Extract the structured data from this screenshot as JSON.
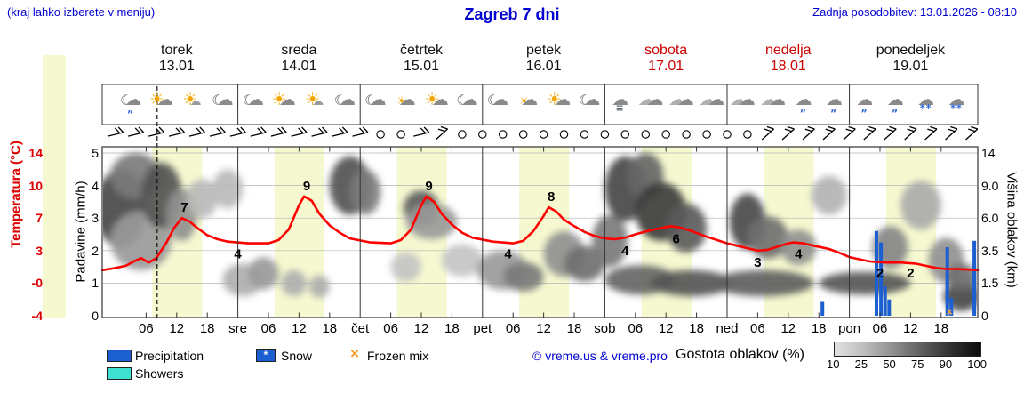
{
  "header": {
    "hint": "(kraj lahko izberete v meniju)",
    "title": "Zagreb 7 dni",
    "updated": "Zadnja posodobitev: 13.01.2026 - 08:10"
  },
  "axes": {
    "temp_label": "Temperatura (°C)",
    "temp_ticks": [
      "14",
      "10",
      "7",
      "3",
      "-0",
      "-4"
    ],
    "precip_label": "Padavine (mm/h)",
    "precip_ticks": [
      "5",
      "4",
      "3",
      "2",
      "1",
      "0"
    ],
    "cloud_label": "Višina oblakov (km)",
    "cloud_ticks": [
      "14",
      "9.0",
      "6.0",
      "3.5",
      "1.5",
      "0"
    ]
  },
  "days": [
    {
      "name": "torek",
      "date": "13.01",
      "weekend": false
    },
    {
      "name": "sreda",
      "date": "14.01",
      "weekend": false
    },
    {
      "name": "četrtek",
      "date": "15.01",
      "weekend": false
    },
    {
      "name": "petek",
      "date": "16.01",
      "weekend": false
    },
    {
      "name": "sobota",
      "date": "17.01",
      "weekend": true
    },
    {
      "name": "nedelja",
      "date": "18.01",
      "weekend": true
    },
    {
      "name": "ponedeljek",
      "date": "19.01",
      "weekend": false
    }
  ],
  "bottom_axis": {
    "time_labels": [
      "06",
      "12",
      "18"
    ],
    "day_abbrevs": [
      "sre",
      "čet",
      "pet",
      "sob",
      "ned",
      "pon"
    ]
  },
  "legend": {
    "precipitation": "Precipitation",
    "snow": "Snow",
    "snow_glyph": "*",
    "frozen": "Frozen mix",
    "frozen_glyph": "×",
    "showers": "Showers",
    "copyright": "© vreme.us & vreme.pro",
    "cloud_density": "Gostota oblakov (%)",
    "density_ticks": [
      "10",
      "25",
      "50",
      "75",
      "90",
      "100"
    ]
  },
  "colors": {
    "accent_blue": "#0000d0",
    "temp_curve_red": "#ff0000",
    "tick_red": "#dd0000",
    "weekend_red": "#cc0000",
    "precip_blue": "#1b5fd0",
    "showers_cyan": "#3fe0cf",
    "frozen_orange": "#f0a030",
    "day_band_yellow": "#f6f9d0"
  },
  "weather_icons": [
    {
      "t": 3,
      "name": "night-drizzle",
      "parts": [
        [
          "☾",
          "moon"
        ],
        [
          "☁",
          "cloud"
        ]
      ],
      "mark": "„",
      "markcls": "rain"
    },
    {
      "t": 9,
      "name": "partly-sunny",
      "parts": [
        [
          "☀",
          "sun"
        ],
        [
          "☁",
          "cloud"
        ]
      ]
    },
    {
      "t": 15,
      "name": "sunny",
      "parts": [
        [
          "☀",
          "sun"
        ],
        [
          "☁",
          "cloud-small"
        ]
      ]
    },
    {
      "t": 21,
      "name": "night-cloudy",
      "parts": [
        [
          "☾",
          "moon"
        ],
        [
          "☁",
          "cloud"
        ]
      ]
    },
    {
      "t": 27,
      "name": "night-cloudy",
      "parts": [
        [
          "☾",
          "moon"
        ],
        [
          "☁",
          "cloud"
        ]
      ]
    },
    {
      "t": 33,
      "name": "partly-sunny",
      "parts": [
        [
          "☀",
          "sun"
        ],
        [
          "☁",
          "cloud"
        ]
      ]
    },
    {
      "t": 39,
      "name": "mostly-sunny",
      "parts": [
        [
          "☀",
          "sun"
        ],
        [
          "☁",
          "cloud-small"
        ]
      ]
    },
    {
      "t": 45,
      "name": "night-cloudy",
      "parts": [
        [
          "☾",
          "moon"
        ],
        [
          "☁",
          "cloud"
        ]
      ]
    },
    {
      "t": 51,
      "name": "night-cloudy",
      "parts": [
        [
          "☾",
          "moon"
        ],
        [
          "☁",
          "cloud"
        ]
      ]
    },
    {
      "t": 57,
      "name": "cloudy-sun",
      "parts": [
        [
          "☀",
          "sun-small"
        ],
        [
          "☁",
          "cloud"
        ]
      ]
    },
    {
      "t": 63,
      "name": "partly-sunny",
      "parts": [
        [
          "☀",
          "sun"
        ],
        [
          "☁",
          "cloud"
        ]
      ]
    },
    {
      "t": 69,
      "name": "night-cloudy",
      "parts": [
        [
          "☾",
          "moon"
        ],
        [
          "☁",
          "cloud"
        ]
      ]
    },
    {
      "t": 75,
      "name": "night-cloudy",
      "parts": [
        [
          "☾",
          "moon"
        ],
        [
          "☁",
          "cloud"
        ]
      ]
    },
    {
      "t": 81,
      "name": "cloudy-sun",
      "parts": [
        [
          "☀",
          "sun-small"
        ],
        [
          "☁",
          "cloud"
        ]
      ]
    },
    {
      "t": 87,
      "name": "partly-sunny",
      "parts": [
        [
          "☀",
          "sun"
        ],
        [
          "☁",
          "cloud"
        ]
      ]
    },
    {
      "t": 93,
      "name": "night-cloudy",
      "parts": [
        [
          "☾",
          "moon"
        ],
        [
          "☁",
          "cloud"
        ]
      ]
    },
    {
      "t": 99,
      "name": "fog",
      "parts": [
        [
          "☁",
          "cloud"
        ]
      ],
      "mark": "≡",
      "markcls": "fog"
    },
    {
      "t": 105,
      "name": "cloudy",
      "parts": [
        [
          "☁",
          "cloud2"
        ],
        [
          "☁",
          "cloud"
        ]
      ]
    },
    {
      "t": 111,
      "name": "cloudy",
      "parts": [
        [
          "☁",
          "cloud2"
        ],
        [
          "☁",
          "cloud"
        ]
      ]
    },
    {
      "t": 117,
      "name": "cloudy",
      "parts": [
        [
          "☁",
          "cloud2"
        ],
        [
          "☁",
          "cloud"
        ]
      ]
    },
    {
      "t": 123,
      "name": "cloudy",
      "parts": [
        [
          "☁",
          "cloud2"
        ],
        [
          "☁",
          "cloud"
        ]
      ]
    },
    {
      "t": 129,
      "name": "cloudy",
      "parts": [
        [
          "☁",
          "cloud2"
        ],
        [
          "☁",
          "cloud"
        ]
      ]
    },
    {
      "t": 135,
      "name": "rain",
      "parts": [
        [
          "☁",
          "cloud"
        ]
      ],
      "mark": "„",
      "markcls": "rain"
    },
    {
      "t": 141,
      "name": "rain",
      "parts": [
        [
          "☁",
          "cloud"
        ]
      ],
      "mark": "„",
      "markcls": "rain"
    },
    {
      "t": 147,
      "name": "rain",
      "parts": [
        [
          "☁",
          "cloud"
        ]
      ],
      "mark": "„",
      "markcls": "rain"
    },
    {
      "t": 153,
      "name": "rain",
      "parts": [
        [
          "☁",
          "cloud"
        ]
      ],
      "mark": "„",
      "markcls": "rain"
    },
    {
      "t": 159,
      "name": "snow",
      "parts": [
        [
          "☁",
          "cloud"
        ]
      ],
      "mark": "**",
      "markcls": "snow"
    },
    {
      "t": 165,
      "name": "snow",
      "parts": [
        [
          "☁",
          "cloud"
        ]
      ],
      "mark": "**",
      "markcls": "snow"
    }
  ],
  "chart_data": {
    "type": "meteogram",
    "title": "Zagreb 7 dni",
    "num_days": 7,
    "x_start_hour": -2.6,
    "x_end_hour": 169.2,
    "temp_scale_c": [
      -4,
      0,
      3,
      7,
      10,
      14
    ],
    "precip_scale_mmh": [
      0,
      1,
      2,
      3,
      4,
      5
    ],
    "cloud_height_scale_km": [
      0,
      1.5,
      3.5,
      6,
      9,
      14
    ],
    "day_band_hours": [
      7.2,
      17
    ],
    "now_hour": 8.17,
    "temperature_c": [
      [
        -2.6,
        1.2
      ],
      [
        0,
        1.4
      ],
      [
        2,
        1.6
      ],
      [
        4,
        2.1
      ],
      [
        5,
        2.3
      ],
      [
        6.5,
        1.9
      ],
      [
        8,
        2.3
      ],
      [
        10,
        4.0
      ],
      [
        11.5,
        5.8
      ],
      [
        13,
        7.0
      ],
      [
        14.5,
        6.6
      ],
      [
        16,
        5.8
      ],
      [
        18,
        4.9
      ],
      [
        20,
        4.4
      ],
      [
        22,
        4.1
      ],
      [
        26,
        3.9
      ],
      [
        30,
        3.9
      ],
      [
        32,
        4.3
      ],
      [
        34,
        5.6
      ],
      [
        36,
        8.2
      ],
      [
        37,
        9.0
      ],
      [
        38.5,
        8.6
      ],
      [
        40,
        7.4
      ],
      [
        42,
        6.1
      ],
      [
        44,
        5.2
      ],
      [
        46,
        4.5
      ],
      [
        50,
        4.0
      ],
      [
        54,
        3.9
      ],
      [
        56,
        4.3
      ],
      [
        58,
        5.6
      ],
      [
        60,
        8.2
      ],
      [
        61,
        9.0
      ],
      [
        62.5,
        8.5
      ],
      [
        64,
        7.4
      ],
      [
        66,
        6.2
      ],
      [
        68,
        5.2
      ],
      [
        70,
        4.6
      ],
      [
        74,
        4.1
      ],
      [
        78,
        3.9
      ],
      [
        80,
        4.2
      ],
      [
        82,
        5.4
      ],
      [
        84,
        7.2
      ],
      [
        85,
        8.0
      ],
      [
        86.5,
        7.6
      ],
      [
        88,
        6.8
      ],
      [
        90,
        6.0
      ],
      [
        92,
        5.3
      ],
      [
        94,
        4.8
      ],
      [
        96,
        4.5
      ],
      [
        98,
        4.4
      ],
      [
        100,
        4.6
      ],
      [
        102,
        5.0
      ],
      [
        105,
        5.5
      ],
      [
        108,
        5.9
      ],
      [
        109,
        6.0
      ],
      [
        111,
        5.8
      ],
      [
        113,
        5.4
      ],
      [
        116,
        4.7
      ],
      [
        118,
        4.3
      ],
      [
        120,
        3.9
      ],
      [
        122,
        3.6
      ],
      [
        124,
        3.3
      ],
      [
        126,
        3.0
      ],
      [
        128,
        3.1
      ],
      [
        130,
        3.5
      ],
      [
        132,
        3.9
      ],
      [
        133,
        4.0
      ],
      [
        135,
        3.9
      ],
      [
        137,
        3.6
      ],
      [
        140,
        3.2
      ],
      [
        142,
        2.8
      ],
      [
        144,
        2.4
      ],
      [
        146,
        2.2
      ],
      [
        148,
        2.0
      ],
      [
        151,
        1.9
      ],
      [
        154,
        1.9
      ],
      [
        157,
        1.8
      ],
      [
        159,
        1.6
      ],
      [
        161,
        1.4
      ],
      [
        163,
        1.3
      ],
      [
        165,
        1.3
      ],
      [
        167,
        1.25
      ],
      [
        169.2,
        1.2
      ]
    ],
    "temp_labels": [
      {
        "t": 13.5,
        "c": 7,
        "text": "7",
        "pos": "above"
      },
      {
        "t": 24,
        "c": 4,
        "text": "4",
        "pos": "below"
      },
      {
        "t": 37.5,
        "c": 9,
        "text": "9",
        "pos": "above"
      },
      {
        "t": 61.5,
        "c": 9,
        "text": "9",
        "pos": "above"
      },
      {
        "t": 77,
        "c": 4,
        "text": "4",
        "pos": "below"
      },
      {
        "t": 85.5,
        "c": 8,
        "text": "8",
        "pos": "above"
      },
      {
        "t": 100,
        "c": 4.4,
        "text": "4",
        "pos": "below"
      },
      {
        "t": 110,
        "c": 5.9,
        "text": "6",
        "pos": "below"
      },
      {
        "t": 126,
        "c": 3,
        "text": "3",
        "pos": "below"
      },
      {
        "t": 134,
        "c": 4,
        "text": "4",
        "pos": "below"
      },
      {
        "t": 150,
        "c": 2,
        "text": "2",
        "pos": "below"
      },
      {
        "t": 156,
        "c": 2,
        "text": "2",
        "pos": "below"
      }
    ],
    "precip_bars_mmh": [
      [
        138.7,
        0.45
      ],
      [
        149.3,
        2.6
      ],
      [
        150.2,
        2.25
      ],
      [
        151,
        0.9
      ],
      [
        151.8,
        0.5
      ],
      [
        163.2,
        2.1
      ],
      [
        164,
        0.55
      ],
      [
        168.5,
        2.3
      ]
    ],
    "frozen_mix_hours": [
      163.6
    ],
    "cloud_blobs": [
      [
        1,
        3.3,
        5,
        1.2,
        80
      ],
      [
        4,
        4.3,
        5,
        0.7,
        55
      ],
      [
        5,
        2.3,
        6,
        0.9,
        40
      ],
      [
        9,
        3.7,
        4,
        1.0,
        75
      ],
      [
        13,
        3.1,
        3,
        0.8,
        45
      ],
      [
        17,
        3.6,
        3,
        0.6,
        25
      ],
      [
        22,
        3.9,
        3,
        0.6,
        25
      ],
      [
        25,
        1.1,
        4,
        0.5,
        30
      ],
      [
        29,
        1.3,
        3,
        0.5,
        40
      ],
      [
        35,
        1.0,
        2.5,
        0.4,
        30
      ],
      [
        40,
        0.9,
        2,
        0.35,
        30
      ],
      [
        46,
        4.0,
        4,
        0.9,
        75
      ],
      [
        49,
        3.8,
        3,
        0.7,
        55
      ],
      [
        60,
        3.3,
        3.5,
        0.55,
        70
      ],
      [
        62,
        2.9,
        5,
        0.55,
        40
      ],
      [
        57,
        1.5,
        3,
        0.45,
        20
      ],
      [
        68,
        1.7,
        4,
        0.5,
        20
      ],
      [
        76,
        1.4,
        5,
        0.6,
        40
      ],
      [
        80,
        1.2,
        4,
        0.45,
        55
      ],
      [
        88,
        1.9,
        4,
        0.7,
        45
      ],
      [
        92,
        1.6,
        4,
        0.55,
        60
      ],
      [
        97,
        2.3,
        3.5,
        0.8,
        55
      ],
      [
        100,
        3.9,
        4,
        1.0,
        80
      ],
      [
        104,
        4.3,
        3.5,
        0.7,
        65
      ],
      [
        107,
        3.2,
        5,
        0.9,
        85
      ],
      [
        112,
        2.7,
        4,
        0.75,
        70
      ],
      [
        103,
        1.1,
        7,
        0.45,
        65
      ],
      [
        113,
        1.0,
        8,
        0.4,
        72
      ],
      [
        124,
        2.9,
        3.5,
        0.85,
        78
      ],
      [
        128,
        2.4,
        4,
        0.65,
        60
      ],
      [
        134,
        2.1,
        3.5,
        0.55,
        45
      ],
      [
        140,
        3.7,
        3.5,
        0.6,
        28
      ],
      [
        127,
        1.0,
        10,
        0.4,
        68
      ],
      [
        147,
        1.0,
        9,
        0.35,
        72
      ],
      [
        152,
        2.1,
        3.5,
        0.65,
        50
      ],
      [
        158,
        3.4,
        4,
        0.75,
        32
      ],
      [
        163,
        1.7,
        3.5,
        0.7,
        45
      ],
      [
        166,
        0.6,
        3.5,
        0.45,
        80
      ],
      [
        166,
        1.2,
        3,
        0.4,
        60
      ]
    ],
    "wind_symbols": [
      {
        "t": 0,
        "k": "barb"
      },
      {
        "t": 4,
        "k": "barb"
      },
      {
        "t": 8,
        "k": "barb"
      },
      {
        "t": 12,
        "k": "barb"
      },
      {
        "t": 16,
        "k": "barb"
      },
      {
        "t": 20,
        "k": "barb"
      },
      {
        "t": 24,
        "k": "barb"
      },
      {
        "t": 28,
        "k": "barb"
      },
      {
        "t": 32,
        "k": "barb"
      },
      {
        "t": 36,
        "k": "barb"
      },
      {
        "t": 40,
        "k": "barb"
      },
      {
        "t": 44,
        "k": "barb"
      },
      {
        "t": 48,
        "k": "barb"
      },
      {
        "t": 52,
        "k": "calm"
      },
      {
        "t": 56,
        "k": "calm"
      },
      {
        "t": 60,
        "k": "barb"
      },
      {
        "t": 64,
        "k": "barb"
      },
      {
        "t": 68,
        "k": "calm"
      },
      {
        "t": 72,
        "k": "calm"
      },
      {
        "t": 76,
        "k": "calm"
      },
      {
        "t": 80,
        "k": "calm"
      },
      {
        "t": 84,
        "k": "calm"
      },
      {
        "t": 88,
        "k": "calm"
      },
      {
        "t": 92,
        "k": "calm"
      },
      {
        "t": 96,
        "k": "calm"
      },
      {
        "t": 100,
        "k": "calm"
      },
      {
        "t": 104,
        "k": "calm"
      },
      {
        "t": 108,
        "k": "calm"
      },
      {
        "t": 112,
        "k": "calm"
      },
      {
        "t": 116,
        "k": "calm"
      },
      {
        "t": 120,
        "k": "calm"
      },
      {
        "t": 124,
        "k": "calm"
      },
      {
        "t": 128,
        "k": "barb"
      },
      {
        "t": 132,
        "k": "barb"
      },
      {
        "t": 136,
        "k": "barb"
      },
      {
        "t": 140,
        "k": "barb"
      },
      {
        "t": 144,
        "k": "barb"
      },
      {
        "t": 148,
        "k": "barb"
      },
      {
        "t": 152,
        "k": "barb"
      },
      {
        "t": 156,
        "k": "barb"
      },
      {
        "t": 160,
        "k": "barb"
      },
      {
        "t": 164,
        "k": "barb"
      },
      {
        "t": 168,
        "k": "barb"
      }
    ]
  }
}
